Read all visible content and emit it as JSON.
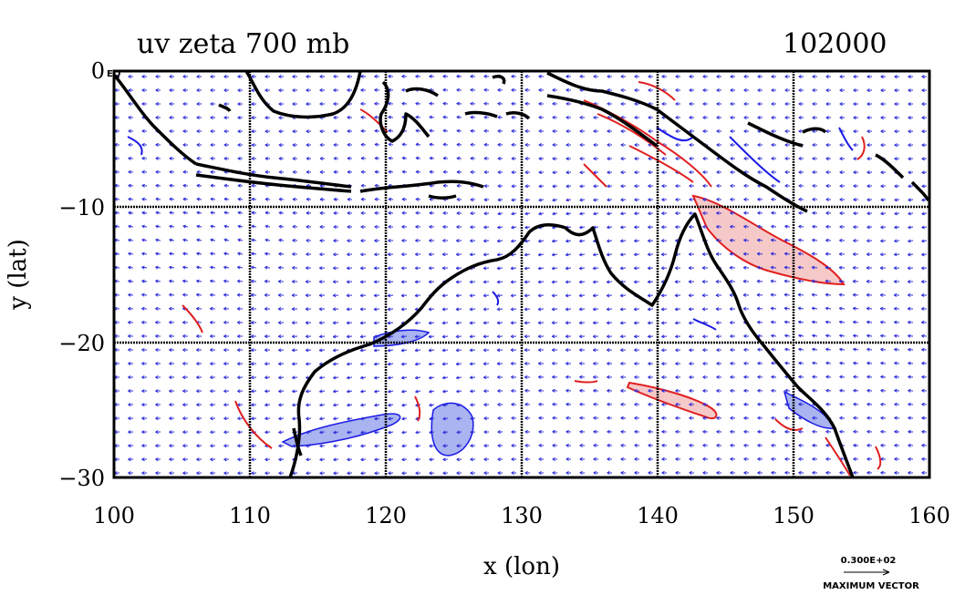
{
  "title": "uv zeta 700 mb",
  "time_label": "102000",
  "corner_label": "EQ",
  "x_axis_label": "x (lon)",
  "y_axis_label": "y (lat)",
  "x_ticks": [
    "100",
    "110",
    "120",
    "130",
    "140",
    "150",
    "160"
  ],
  "y_ticks": [
    "0",
    "−10",
    "−20",
    "−30"
  ],
  "vector_key": {
    "magnitude": "0.300E+02",
    "label": "MAXIMUM VECTOR"
  },
  "chart_data": {
    "type": "vector_field_map",
    "title": "uv zeta 700 mb",
    "xlabel": "x (lon)",
    "ylabel": "y (lat)",
    "xlim": [
      100,
      160
    ],
    "ylim": [
      -30,
      0
    ],
    "grid": true,
    "colors": {
      "vectors": "#2b2bd9",
      "positive_vorticity": "#e02020",
      "negative_vorticity": "#1a1ae6",
      "positive_fill": "#f6c9c9",
      "negative_fill": "#a9b4f0",
      "coast": "#000000"
    },
    "grid_lon": [
      110,
      120,
      130,
      140,
      150
    ],
    "grid_lat": [
      -10,
      -20
    ]
  }
}
